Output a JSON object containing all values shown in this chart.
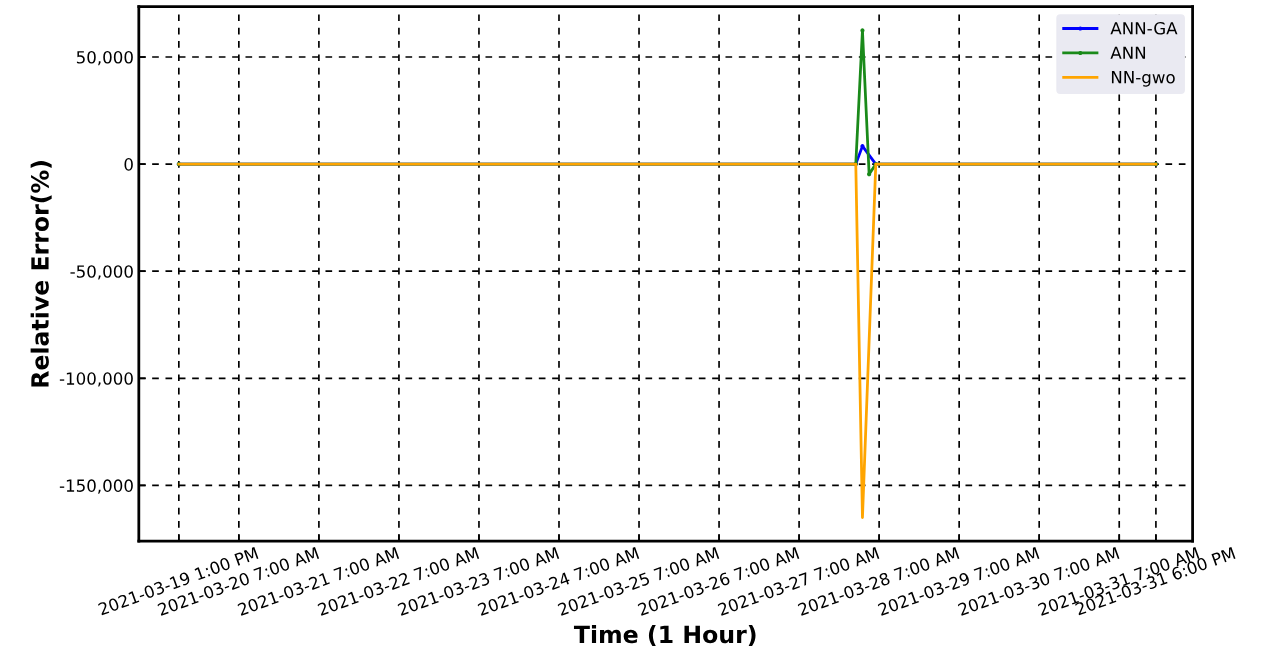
{
  "chart_data": {
    "type": "line",
    "xlabel": "Time (1 Hour)",
    "ylabel": "Relative Error(%)",
    "x": [
      "2021-03-19T13:00",
      "2021-03-28T00:00",
      "2021-03-28T02:00",
      "2021-03-28T04:00",
      "2021-03-28T06:00",
      "2021-03-31T18:00"
    ],
    "series": [
      {
        "name": "ANN-GA",
        "color": "#0000ff",
        "marker": "circle",
        "x": [
          "2021-03-19T13:00",
          "2021-03-28T00:00",
          "2021-03-28T02:00",
          "2021-03-28T06:00",
          "2021-03-31T18:00"
        ],
        "values": [
          0,
          0,
          8400,
          0,
          0
        ]
      },
      {
        "name": "ANN",
        "color": "#1a8a1a",
        "marker": "circle",
        "values": [
          0,
          0,
          62400,
          -4700,
          0,
          0
        ]
      },
      {
        "name": "NN-gwo",
        "color": "#ffa500",
        "marker": "none",
        "x": [
          "2021-03-19T13:00",
          "2021-03-28T00:00",
          "2021-03-28T02:00",
          "2021-03-28T06:00",
          "2021-03-31T18:00"
        ],
        "values": [
          0,
          0,
          -165000,
          0,
          0
        ]
      }
    ],
    "xlim": [
      "2021-03-19T01:00",
      "2021-04-01T05:00"
    ],
    "xticks": [
      {
        "value": "2021-03-19T13:00",
        "label": "2021-03-19 1:00 PM"
      },
      {
        "value": "2021-03-20T07:00",
        "label": "2021-03-20 7:00 AM"
      },
      {
        "value": "2021-03-21T07:00",
        "label": "2021-03-21 7:00 AM"
      },
      {
        "value": "2021-03-22T07:00",
        "label": "2021-03-22 7:00 AM"
      },
      {
        "value": "2021-03-23T07:00",
        "label": "2021-03-23 7:00 AM"
      },
      {
        "value": "2021-03-24T07:00",
        "label": "2021-03-24 7:00 AM"
      },
      {
        "value": "2021-03-25T07:00",
        "label": "2021-03-25 7:00 AM"
      },
      {
        "value": "2021-03-26T07:00",
        "label": "2021-03-26 7:00 AM"
      },
      {
        "value": "2021-03-27T07:00",
        "label": "2021-03-27 7:00 AM"
      },
      {
        "value": "2021-03-28T07:00",
        "label": "2021-03-28 7:00 AM"
      },
      {
        "value": "2021-03-29T07:00",
        "label": "2021-03-29 7:00 AM"
      },
      {
        "value": "2021-03-30T07:00",
        "label": "2021-03-30 7:00 AM"
      },
      {
        "value": "2021-03-31T07:00",
        "label": "2021-03-31 7:00 AM"
      },
      {
        "value": "2021-03-31T18:00",
        "label": "2021-03-31 6:00 PM"
      }
    ],
    "ylim": [
      -176000,
      73500
    ],
    "yticks": [
      {
        "value": 50000,
        "label": "50,000"
      },
      {
        "value": 0,
        "label": "0"
      },
      {
        "value": -50000,
        "label": "-50,000"
      },
      {
        "value": -100000,
        "label": "-100,000"
      },
      {
        "value": -150000,
        "label": "-150,000"
      }
    ],
    "grid": true,
    "legend": "top right",
    "line_style": "solid"
  }
}
